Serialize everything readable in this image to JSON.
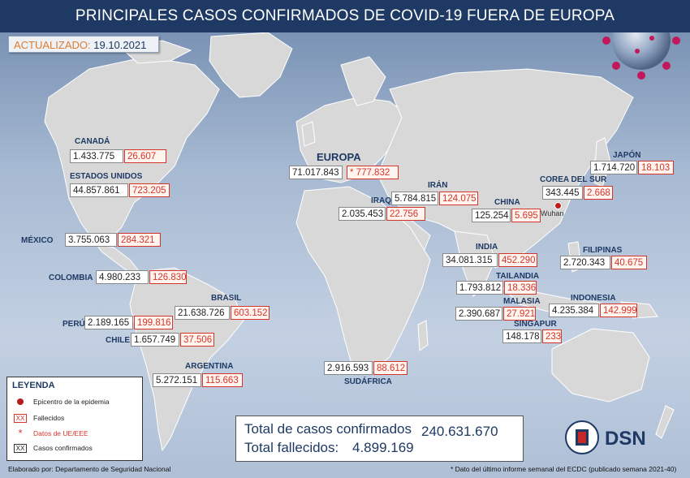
{
  "header": {
    "title": "PRINCIPALES CASOS CONFIRMADOS DE COVID-19 FUERA DE EUROPA",
    "updated_label": "ACTUALIZADO:",
    "updated_date": "19.10.2021"
  },
  "colors": {
    "header_bg": "#1e3a64",
    "label_blue": "#1e3a64",
    "deaths_red": "#d6342a",
    "land_gray": "#d6d6d6",
    "ocean_blue": "#a6b9d2",
    "updated_orange": "#e07b2e"
  },
  "regions": [
    {
      "name": "CANADÁ",
      "confirmed": "1.433.775",
      "deaths": "26.607"
    },
    {
      "name": "ESTADOS UNIDOS",
      "confirmed": "44.857.861",
      "deaths": "723.205"
    },
    {
      "name": "MÉXICO",
      "confirmed": "3.755.063",
      "deaths": "284.321"
    },
    {
      "name": "COLOMBIA",
      "confirmed": "4.980.233",
      "deaths": "126.830"
    },
    {
      "name": "BRASIL",
      "confirmed": "21.638.726",
      "deaths": "603.152"
    },
    {
      "name": "PERÚ",
      "confirmed": "2.189.165",
      "deaths": "199.816"
    },
    {
      "name": "CHILE",
      "confirmed": "1.657.749",
      "deaths": "37.506"
    },
    {
      "name": "ARGENTINA",
      "confirmed": "5.272.151",
      "deaths": "115.663"
    },
    {
      "name": "EUROPA",
      "confirmed": "71.017.843",
      "deaths": "* 777.832"
    },
    {
      "name": "IRÁN",
      "confirmed": "5.784.815",
      "deaths": "124.075"
    },
    {
      "name": "IRAQ",
      "confirmed": "2.035.453",
      "deaths": "22.756"
    },
    {
      "name": "CHINA",
      "confirmed": "125.254",
      "deaths": "5.695"
    },
    {
      "name": "COREA DEL SUR",
      "confirmed": "343.445",
      "deaths": "2.668"
    },
    {
      "name": "JAPÓN",
      "confirmed": "1.714.720",
      "deaths": "18.103"
    },
    {
      "name": "INDIA",
      "confirmed": "34.081.315",
      "deaths": "452.290"
    },
    {
      "name": "FILIPINAS",
      "confirmed": "2.720.343",
      "deaths": "40.675"
    },
    {
      "name": "TAILANDIA",
      "confirmed": "1.793.812",
      "deaths": "18.336"
    },
    {
      "name": "MALASIA",
      "confirmed": "2.390.687",
      "deaths": "27.921"
    },
    {
      "name": "INDONESIA",
      "confirmed": "4.235.384",
      "deaths": "142.999"
    },
    {
      "name": "SINGAPUR",
      "confirmed": "148.178",
      "deaths": "233"
    },
    {
      "name": "SUDÁFRICA",
      "confirmed": "2.916.593",
      "deaths": "88.612"
    }
  ],
  "epicenter": {
    "label": "Wuhan"
  },
  "legend": {
    "title": "LEYENDA",
    "items": [
      {
        "symbol": "dot",
        "text": "Epicentro de la epidemia"
      },
      {
        "symbol": "XX",
        "text": "Fallecidos"
      },
      {
        "symbol": "*",
        "text": "Datos de UE/EEE"
      },
      {
        "symbol": "XX",
        "text": "Casos confirmados"
      }
    ]
  },
  "totals": {
    "confirmed_label": "Total de casos confirmados",
    "confirmed_value": "240.631.670",
    "deaths_label": "Total fallecidos:",
    "deaths_value": "4.899.169"
  },
  "footer": {
    "credit": "Elaborado por: Departamento de Seguridad Nacional",
    "note": "* Dato del último informe semanal del ECDC (publicado semana 2021-40)"
  },
  "logo": {
    "text": "DSN"
  }
}
